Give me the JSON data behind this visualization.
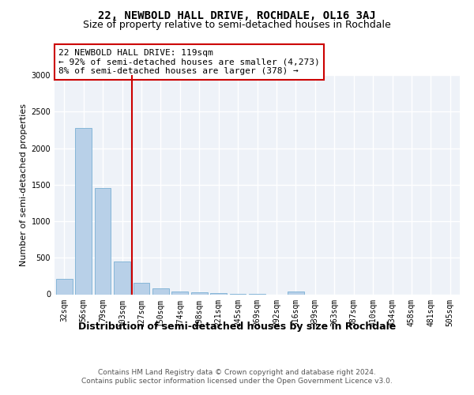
{
  "title": "22, NEWBOLD HALL DRIVE, ROCHDALE, OL16 3AJ",
  "subtitle": "Size of property relative to semi-detached houses in Rochdale",
  "xlabel": "Distribution of semi-detached houses by size in Rochdale",
  "ylabel": "Number of semi-detached properties",
  "categories": [
    "32sqm",
    "56sqm",
    "79sqm",
    "103sqm",
    "127sqm",
    "150sqm",
    "174sqm",
    "198sqm",
    "221sqm",
    "245sqm",
    "269sqm",
    "292sqm",
    "316sqm",
    "339sqm",
    "363sqm",
    "387sqm",
    "410sqm",
    "434sqm",
    "458sqm",
    "481sqm",
    "505sqm"
  ],
  "values": [
    215,
    2280,
    1450,
    450,
    160,
    80,
    40,
    25,
    15,
    5,
    5,
    0,
    40,
    0,
    0,
    0,
    0,
    0,
    0,
    0,
    0
  ],
  "bar_color": "#b8d0e8",
  "bar_edge_color": "#7aafd4",
  "highlight_bar_index": 4,
  "highlight_line_color": "#cc0000",
  "annotation_line1": "22 NEWBOLD HALL DRIVE: 119sqm",
  "annotation_line2": "← 92% of semi-detached houses are smaller (4,273)",
  "annotation_line3": "8% of semi-detached houses are larger (378) →",
  "annotation_box_color": "#ffffff",
  "annotation_box_edge": "#cc0000",
  "ylim": [
    0,
    3000
  ],
  "yticks": [
    0,
    500,
    1000,
    1500,
    2000,
    2500,
    3000
  ],
  "footer_text": "Contains HM Land Registry data © Crown copyright and database right 2024.\nContains public sector information licensed under the Open Government Licence v3.0.",
  "bg_color": "#eef2f8",
  "grid_color": "#ffffff",
  "title_fontsize": 10,
  "subtitle_fontsize": 9,
  "xlabel_fontsize": 9,
  "ylabel_fontsize": 8,
  "tick_fontsize": 7,
  "annotation_fontsize": 8,
  "footer_fontsize": 6.5
}
